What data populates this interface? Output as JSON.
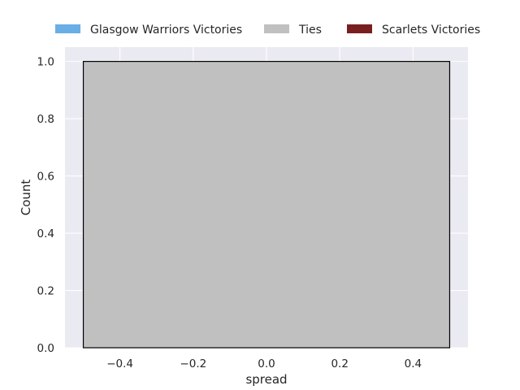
{
  "chart_data": {
    "type": "bar",
    "xlabel": "spread",
    "ylabel": "Count",
    "xlim": [
      -0.55,
      0.55
    ],
    "ylim": [
      0.0,
      1.05
    ],
    "xticks": [
      -0.4,
      -0.2,
      0.0,
      0.2,
      0.4
    ],
    "xtick_labels": [
      "−0.4",
      "−0.2",
      "0.0",
      "0.2",
      "0.4"
    ],
    "yticks": [
      0.0,
      0.2,
      0.4,
      0.6,
      0.8,
      1.0
    ],
    "ytick_labels": [
      "0.0",
      "0.2",
      "0.4",
      "0.6",
      "0.8",
      "1.0"
    ],
    "grid": true,
    "legend_position": "top-center",
    "legend": [
      {
        "label": "Glasgow Warriors Victories",
        "color": "#6aaee6"
      },
      {
        "label": "Ties",
        "color": "#c0c0c0"
      },
      {
        "label": "Scarlets Victories",
        "color": "#7a1f1f"
      }
    ],
    "bins": [
      {
        "x0": -0.5,
        "x1": 0.5,
        "value": 1,
        "color": "#c0c0c0",
        "series": "Ties"
      }
    ],
    "colors": {
      "plot_background": "#eaeaf2",
      "grid": "#ffffff",
      "bar_edge": "#000000"
    }
  }
}
